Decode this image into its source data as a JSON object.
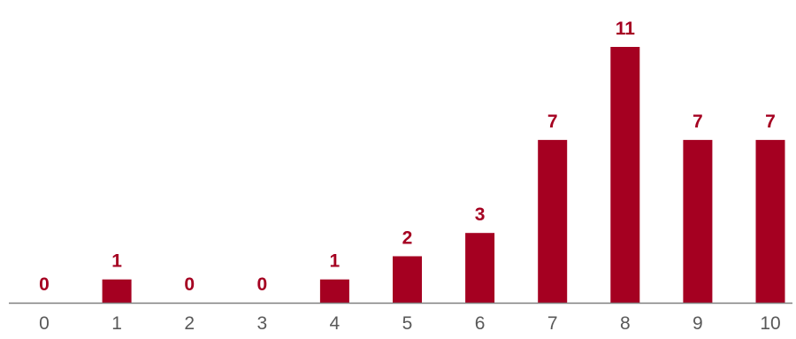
{
  "chart_data": {
    "type": "bar",
    "title": "",
    "xlabel": "",
    "ylabel": "",
    "categories": [
      "0",
      "1",
      "2",
      "3",
      "4",
      "5",
      "6",
      "7",
      "8",
      "9",
      "10"
    ],
    "values": [
      0,
      1,
      0,
      0,
      1,
      2,
      3,
      7,
      11,
      7,
      7
    ],
    "data_labels": [
      "0",
      "1",
      "0",
      "0",
      "1",
      "2",
      "3",
      "7",
      "11",
      "7",
      "7"
    ],
    "ylim": [
      0,
      11
    ],
    "grid": false,
    "legend": "none",
    "colors": {
      "bar": "#a50021",
      "data_label": "#a50021",
      "axis_line": "#808080",
      "tick_label": "#595959"
    }
  }
}
